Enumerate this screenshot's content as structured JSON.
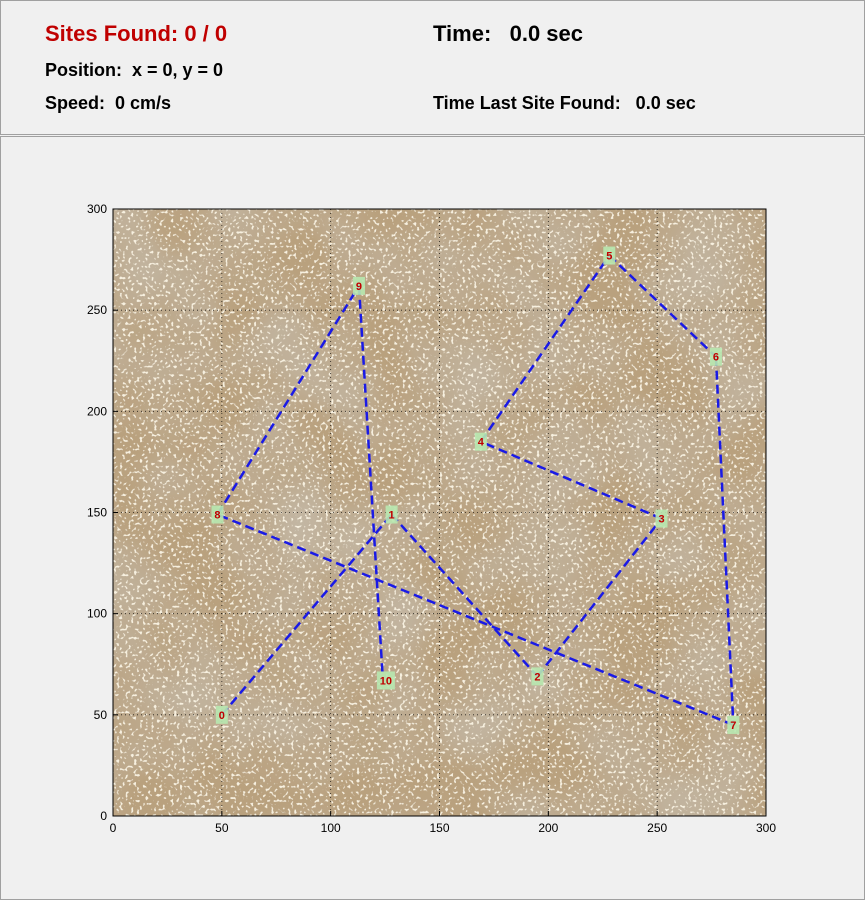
{
  "header": {
    "sites_found": "Sites Found: 0 / 0",
    "time": "Time:   0.0 sec",
    "position": "Position:  x = 0, y = 0",
    "speed": "Speed:  0 cm/s",
    "time_last_site": "Time Last Site Found:   0.0 sec"
  },
  "colors": {
    "sites_found_text": "#c00000",
    "route_line": "#1a1ae6",
    "site_marker_fill": "#b8e8b0",
    "site_label": "#c00000",
    "terrain": "#b9a17e"
  },
  "chart_data": {
    "type": "scatter",
    "xlim": [
      0,
      300
    ],
    "ylim": [
      0,
      300
    ],
    "xticks": [
      0,
      50,
      100,
      150,
      200,
      250,
      300
    ],
    "yticks": [
      0,
      50,
      100,
      150,
      200,
      250,
      300
    ],
    "grid": true,
    "background": "terrain image",
    "route_style": "dashed",
    "sites": [
      {
        "label": "0",
        "x": 50,
        "y": 50
      },
      {
        "label": "1",
        "x": 128,
        "y": 149
      },
      {
        "label": "2",
        "x": 195,
        "y": 69
      },
      {
        "label": "3",
        "x": 252,
        "y": 147
      },
      {
        "label": "4",
        "x": 169,
        "y": 185
      },
      {
        "label": "5",
        "x": 228,
        "y": 277
      },
      {
        "label": "6",
        "x": 277,
        "y": 227
      },
      {
        "label": "7",
        "x": 285,
        "y": 45
      },
      {
        "label": "8",
        "x": 48,
        "y": 149
      },
      {
        "label": "9",
        "x": 113,
        "y": 262
      },
      {
        "label": "10",
        "x": 124,
        "y": 67
      }
    ]
  }
}
